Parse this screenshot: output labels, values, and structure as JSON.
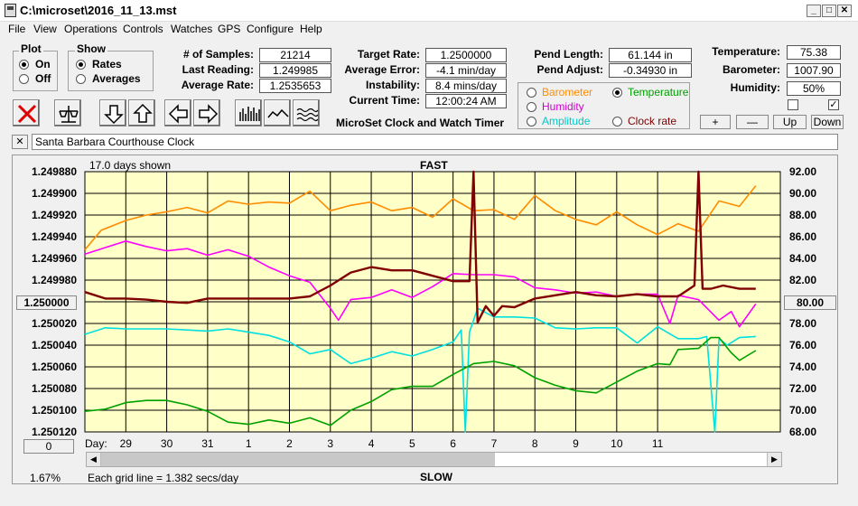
{
  "window": {
    "title": "C:\\microset\\2016_11_13.mst"
  },
  "menu": [
    "File",
    "View",
    "Operations",
    "Controls",
    "Watches",
    "GPS",
    "Configure",
    "Help"
  ],
  "plot_group": {
    "title": "Plot",
    "on": "On",
    "off": "Off"
  },
  "show_group": {
    "title": "Show",
    "rates": "Rates",
    "averages": "Averages"
  },
  "stats": {
    "samples_label": "# of Samples:",
    "samples": "21214",
    "last_label": "Last Reading:",
    "last": "1.249985",
    "avg_label": "Average Rate:",
    "avg": "1.2535653",
    "target_label": "Target Rate:",
    "target": "1.2500000",
    "err_label": "Average Error:",
    "err": "-4.1 min/day",
    "inst_label": "Instability:",
    "inst": "8.4 mins/day",
    "time_label": "Current Time:",
    "time": "12:00:24 AM",
    "plen_label": "Pend Length:",
    "plen": "61.144 in",
    "padj_label": "Pend Adjust:",
    "padj": "-0.34930 in",
    "temp_label": "Temperature:",
    "temp": "75.38",
    "baro_label": "Barometer:",
    "baro": "1007.90",
    "hum_label": "Humidity:",
    "hum": "50%"
  },
  "app_subtitle": "MicroSet Clock and Watch Timer",
  "series_select": {
    "barometer": "Barometer",
    "temperature": "Temperature",
    "humidity": "Humidity",
    "amplitude": "Amplitude",
    "clockrate": "Clock rate"
  },
  "right_buttons": {
    "plus": "+",
    "minus": "—",
    "up": "Up",
    "down": "Down"
  },
  "watch_name": "Santa Barbara Courthouse Clock",
  "close_x": "✕",
  "chart_header": {
    "days_shown": "17.0 days shown",
    "fast": "FAST",
    "slow": "SLOW",
    "grid_note": "Each grid line = 1.382 secs/day",
    "percent": "1.67%",
    "day_label": "Day:",
    "center_left": "1.250000",
    "center_right": "80.00",
    "zero_btn": "0"
  },
  "colors": {
    "barometer": "#ff8c00",
    "temperature": "#00a000",
    "humidity": "#ff00ff",
    "amplitude": "#00e0e0",
    "clockrate": "#800000",
    "plot_bg": "#ffffc8"
  },
  "chart_data": {
    "type": "line",
    "x_label": "Day:",
    "x_ticks": [
      "29",
      "30",
      "31",
      "1",
      "2",
      "3",
      "4",
      "5",
      "6",
      "7",
      "8",
      "9",
      "10",
      "11"
    ],
    "y_left_ticks": [
      "1.249880",
      "1.249900",
      "1.249920",
      "1.249940",
      "1.249960",
      "1.249980",
      "1.250000",
      "1.250020",
      "1.250040",
      "1.250060",
      "1.250080",
      "1.250100",
      "1.250120"
    ],
    "y_right_ticks": [
      "92.00",
      "90.00",
      "88.00",
      "86.00",
      "84.00",
      "82.00",
      "80.00",
      "78.00",
      "76.00",
      "74.00",
      "72.00",
      "70.00",
      "68.00"
    ],
    "y_right_range": [
      68,
      92
    ],
    "x_range": [
      28,
      45
    ],
    "series": [
      {
        "key": "barometer",
        "x": [
          28,
          28.4,
          29,
          29.5,
          30,
          30.5,
          31,
          31.5,
          32,
          32.5,
          33,
          33.5,
          34,
          34.5,
          35,
          35.5,
          36,
          36.5,
          37,
          37.5,
          38,
          38.5,
          39,
          39.5,
          40,
          40.5,
          41,
          41.5,
          42,
          42.5,
          43,
          43.5,
          44,
          44.4
        ],
        "y": [
          84.8,
          86.6,
          87.5,
          88,
          88.3,
          88.7,
          88.2,
          89.3,
          89,
          89.2,
          89.1,
          90.2,
          88.4,
          88.9,
          89.2,
          88.4,
          88.7,
          87.8,
          89.5,
          88.4,
          88.5,
          87.6,
          89.8,
          88.4,
          87.6,
          87.1,
          88.3,
          87.1,
          86.2,
          87.2,
          86.5,
          89.3,
          88.8,
          90.7
        ]
      },
      {
        "key": "humidity",
        "x": [
          28,
          28.5,
          29,
          29.5,
          30,
          30.5,
          31,
          31.5,
          32,
          32.5,
          33,
          33.5,
          34,
          34.2,
          34.5,
          35,
          35.5,
          36,
          36.5,
          37,
          37.5,
          38,
          38.5,
          39,
          39.5,
          40,
          40.5,
          41,
          41.5,
          42,
          42.3,
          42.5,
          43,
          43.5,
          43.8,
          44,
          44.4
        ],
        "y": [
          84.4,
          85,
          85.6,
          85.1,
          84.7,
          84.9,
          84.3,
          84.8,
          84.2,
          83.2,
          82.4,
          81.8,
          79.4,
          78.3,
          80.2,
          80.4,
          81.1,
          80.4,
          81.4,
          82.6,
          82.5,
          82.5,
          82.3,
          81.3,
          81.1,
          80.8,
          80.9,
          80.5,
          80.7,
          80.7,
          78,
          80.6,
          80.2,
          78.3,
          79.1,
          77.7,
          79.8
        ]
      },
      {
        "key": "clockrate",
        "x": [
          28,
          28.5,
          29,
          29.5,
          30,
          30.5,
          31,
          31.5,
          32,
          32.5,
          33,
          33.5,
          34,
          34.5,
          35,
          35.5,
          36,
          36.5,
          37,
          37.4,
          37.5,
          37.6,
          37.8,
          38,
          38.2,
          38.5,
          39,
          39.5,
          40,
          40.5,
          41,
          41.5,
          42,
          42.5,
          42.9,
          43,
          43.1,
          43.3,
          43.6,
          44,
          44.4
        ],
        "y": [
          80.9,
          80.3,
          80.3,
          80.2,
          80,
          79.9,
          80.3,
          80.3,
          80.3,
          80.3,
          80.3,
          80.5,
          81.5,
          82.7,
          83.2,
          82.9,
          82.9,
          82.4,
          81.9,
          81.9,
          92,
          78.1,
          79.6,
          78.7,
          79.6,
          79.5,
          80.3,
          80.6,
          80.9,
          80.6,
          80.5,
          80.7,
          80.5,
          80.5,
          81.5,
          92,
          81.2,
          81.2,
          81.5,
          81.2,
          81.2
        ]
      },
      {
        "key": "amplitude",
        "x": [
          28,
          28.5,
          29,
          29.5,
          30,
          30.5,
          31,
          31.5,
          32,
          32.5,
          33,
          33.5,
          34,
          34.5,
          35,
          35.5,
          36,
          36.5,
          37,
          37.2,
          37.3,
          37.4,
          37.6,
          38,
          38.5,
          39,
          39.5,
          40,
          40.5,
          41,
          41.5,
          42,
          42.5,
          43,
          43.2,
          43.4,
          43.5,
          43.7,
          44,
          44.4
        ],
        "y": [
          77,
          77.6,
          77.5,
          77.5,
          77.5,
          77.4,
          77.3,
          77.5,
          77.2,
          76.9,
          76.3,
          75.2,
          75.6,
          74.3,
          74.8,
          75.4,
          75,
          75.6,
          76.3,
          77.4,
          68,
          77.2,
          79.4,
          78.6,
          78.6,
          78.5,
          77.6,
          77.5,
          77.6,
          77.6,
          76.2,
          77.7,
          76.6,
          76.6,
          76.8,
          68,
          76.6,
          76,
          76.7,
          76.8
        ]
      },
      {
        "key": "temperature",
        "x": [
          28,
          28.5,
          29,
          29.5,
          30,
          30.5,
          31,
          31.5,
          32,
          32.5,
          33,
          33.5,
          34,
          34.5,
          35,
          35.5,
          36,
          36.5,
          37,
          37.5,
          38,
          38.5,
          39,
          39.5,
          40,
          40.5,
          41,
          41.5,
          42,
          42.3,
          42.5,
          43,
          43.3,
          43.5,
          43.8,
          44,
          44.4
        ],
        "y": [
          69.9,
          70.1,
          70.7,
          70.9,
          70.9,
          70.5,
          69.9,
          68.9,
          68.7,
          69.1,
          68.8,
          69.3,
          68.6,
          70,
          70.8,
          71.9,
          72.2,
          72.2,
          73.3,
          74.3,
          74.5,
          74.1,
          73,
          72.3,
          71.8,
          71.6,
          72.6,
          73.6,
          74.3,
          74.2,
          75.6,
          75.7,
          76.7,
          76.7,
          75.3,
          74.6,
          75.5
        ]
      }
    ]
  }
}
